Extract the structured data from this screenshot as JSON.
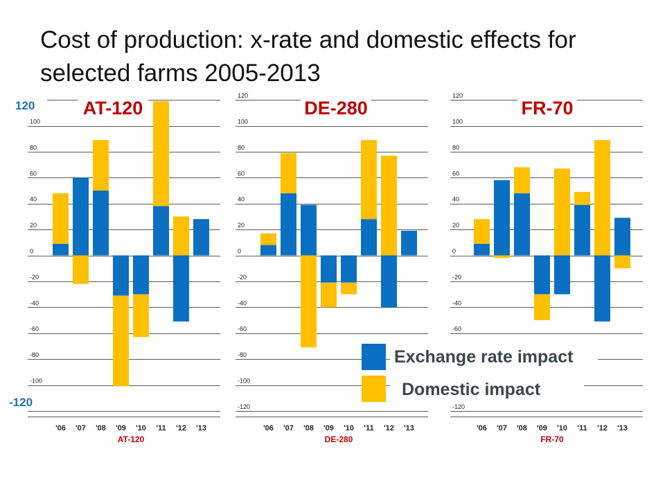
{
  "title": "Cost of production: x-rate and domestic effects for selected farms 2005-2013",
  "colors": {
    "exchange": "#0B6FC2",
    "domestic": "#FFC000",
    "panel_title": "#C00000",
    "big_tick": "#1F6FB5",
    "grid": "#222222"
  },
  "chart_data": [
    {
      "type": "bar",
      "stacked": true,
      "title": "AT-120",
      "xlabel": "AT-120",
      "categories": [
        "'06",
        "'07",
        "'08",
        "'09",
        "'10",
        "'11",
        "'12",
        "'13"
      ],
      "series": [
        {
          "name": "Exchange rate impact",
          "values": [
            9,
            60,
            50,
            -31,
            -30,
            38,
            -51,
            28
          ]
        },
        {
          "name": "Domestic impact",
          "values": [
            39,
            -22,
            39,
            -70,
            -33,
            81,
            30,
            0
          ]
        }
      ],
      "ylim": [
        -120,
        120
      ],
      "yticks": [
        "120",
        "100",
        "80",
        "60",
        "40",
        "20",
        "0",
        "-20",
        "-40",
        "-60",
        "-80",
        "-100",
        "-120"
      ],
      "ytick_labels_shown": [
        "",
        "100",
        "80",
        "60",
        "40",
        "20",
        "0",
        "-20",
        "-40",
        "-60",
        "-80",
        "-100",
        ""
      ],
      "big_top_label": "120",
      "big_bottom_label": "-120",
      "grid": true
    },
    {
      "type": "bar",
      "stacked": true,
      "title": "DE-280",
      "xlabel": "DE-280",
      "categories": [
        "'06",
        "'07",
        "'08",
        "'09",
        "'10",
        "'11",
        "'12",
        "'13"
      ],
      "series": [
        {
          "name": "Exchange rate impact",
          "values": [
            8,
            48,
            39,
            -21,
            -21,
            28,
            -40,
            19
          ]
        },
        {
          "name": "Domestic impact",
          "values": [
            9,
            31,
            -71,
            -19,
            -9,
            61,
            77,
            0
          ]
        }
      ],
      "ylim": [
        -120,
        120
      ],
      "yticks": [
        "120",
        "100",
        "80",
        "60",
        "40",
        "20",
        "0",
        "-20",
        "-40",
        "-60",
        "-80",
        "-100",
        "-120"
      ],
      "ytick_labels_shown": [
        "120",
        "100",
        "80",
        "60",
        "40",
        "20",
        "0",
        "-20",
        "-40",
        "-60",
        "-80",
        "-100",
        "-120"
      ],
      "grid": true
    },
    {
      "type": "bar",
      "stacked": true,
      "title": "FR-70",
      "xlabel": "FR-70",
      "categories": [
        "'06",
        "'07",
        "'08",
        "'09",
        "'10",
        "'11",
        "'12",
        "'13"
      ],
      "series": [
        {
          "name": "Exchange rate impact",
          "values": [
            9,
            58,
            48,
            -30,
            -30,
            39,
            -51,
            29
          ]
        },
        {
          "name": "Domestic impact",
          "values": [
            19,
            -2,
            20,
            -20,
            67,
            10,
            89,
            -10
          ]
        }
      ],
      "ylim": [
        -120,
        120
      ],
      "yticks": [
        "120",
        "100",
        "80",
        "60",
        "40",
        "20",
        "0",
        "-20",
        "-40",
        "-60",
        "-80",
        "-100",
        "-120"
      ],
      "ytick_labels_shown": [
        "120",
        "100",
        "80",
        "60",
        "40",
        "20",
        "0",
        "-20",
        "-40",
        "-60",
        "",
        "",
        "-120"
      ],
      "grid": true
    }
  ],
  "legend": {
    "placement": "bottom-right",
    "items": [
      {
        "label": "Exchange rate impact",
        "color": "#0B6FC2"
      },
      {
        "label": "Domestic impact",
        "color": "#FFC000"
      }
    ]
  }
}
